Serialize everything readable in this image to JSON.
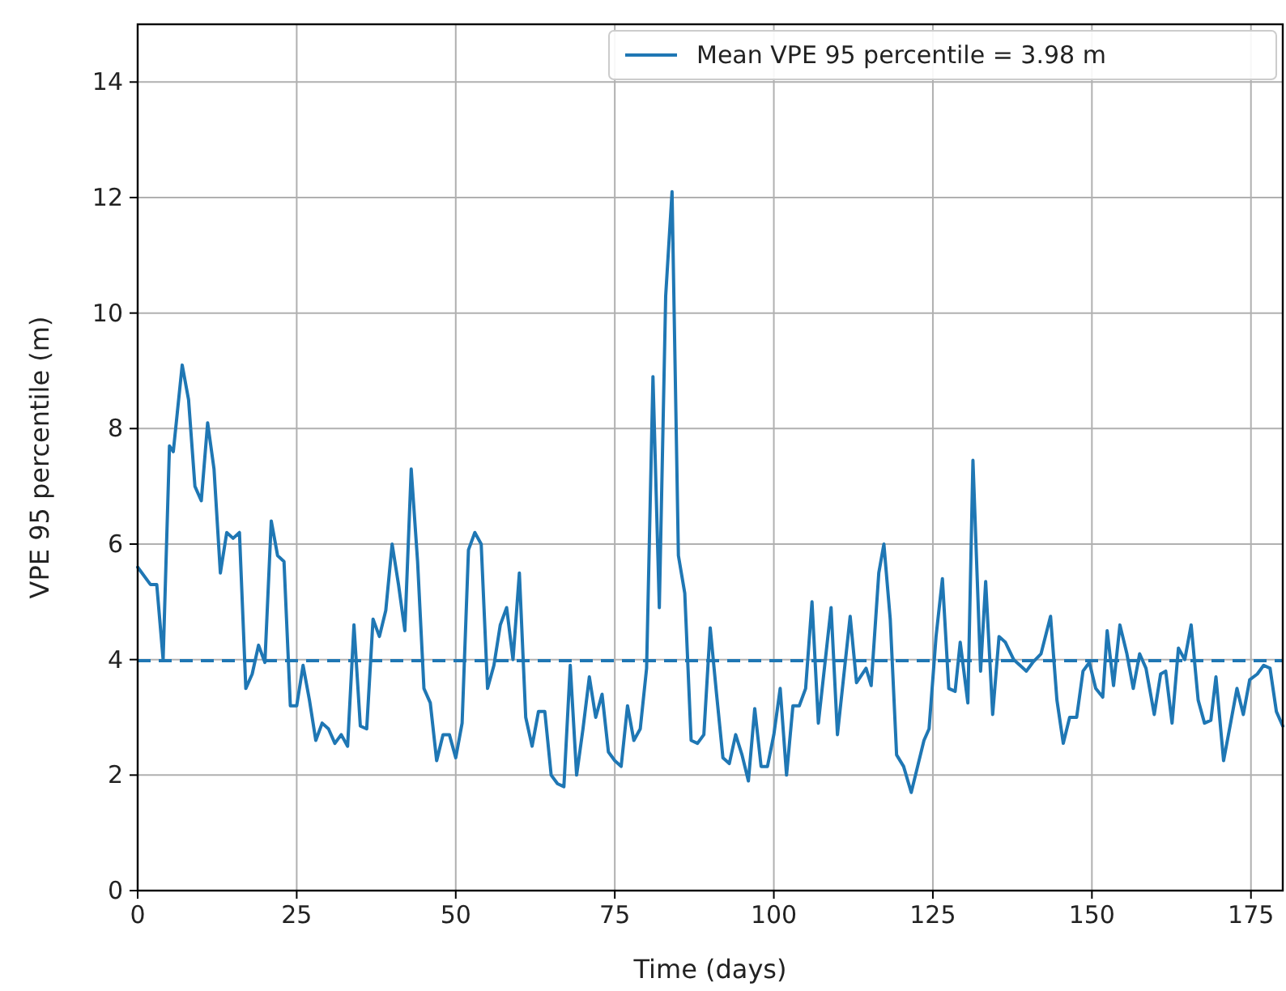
{
  "chart_data": {
    "type": "line",
    "xlabel": "Time (days)",
    "ylabel": "VPE 95 percentile (m)",
    "xlim": [
      0,
      180
    ],
    "ylim": [
      0,
      15
    ],
    "xticks": [
      0,
      25,
      50,
      75,
      100,
      125,
      150,
      175
    ],
    "yticks": [
      0,
      2,
      4,
      6,
      8,
      10,
      12,
      14
    ],
    "grid": true,
    "legend": "top right",
    "line_style": "solid",
    "marker": "none",
    "series": [
      {
        "name": "Mean VPE 95 percentile = 3.98 m",
        "color": "#1f77b4",
        "x": [
          0,
          2,
          3,
          4,
          5,
          5.6,
          7,
          8,
          9,
          10,
          11,
          12,
          13,
          14,
          15,
          16,
          17,
          18,
          19,
          20,
          21,
          22,
          23,
          24,
          25,
          26,
          27,
          28,
          29,
          30,
          31,
          32,
          33,
          34,
          35,
          36,
          37,
          38,
          39,
          40,
          41,
          42,
          43,
          44,
          45,
          46,
          47,
          48,
          49,
          50,
          51,
          52,
          53,
          54,
          55,
          56,
          57,
          58,
          59,
          60,
          61,
          62,
          63,
          64,
          65,
          66,
          67,
          68,
          69,
          70,
          71,
          72,
          73,
          74,
          75,
          76,
          77,
          78,
          79,
          80,
          81,
          82,
          83,
          84,
          85,
          86,
          87,
          88,
          89,
          90,
          91,
          92,
          93,
          94,
          95,
          96,
          97,
          98,
          99,
          100,
          101,
          102,
          103,
          104,
          105,
          106,
          107,
          109,
          110,
          112,
          113,
          114.5,
          115.3,
          116.5,
          117.3,
          118.3,
          119.3,
          120.4,
          121.6,
          122.6,
          123.6,
          124.4,
          125.5,
          126.5,
          127.5,
          128.5,
          129.3,
          130.5,
          131.3,
          132.5,
          133.3,
          134.4,
          135.4,
          136.4,
          137.7,
          138.7,
          139.7,
          140.7,
          142,
          143.5,
          144.5,
          145.5,
          146.5,
          147.6,
          148.6,
          149.6,
          150.6,
          151.7,
          152.4,
          153.4,
          154.4,
          155.5,
          156.5,
          157.5,
          158.5,
          159.8,
          160.8,
          161.6,
          162.6,
          163.6,
          164.6,
          165.6,
          166.7,
          167.7,
          168.7,
          169.5,
          170.7,
          171.8,
          172.8,
          173.8,
          174.8,
          176,
          177,
          178,
          179,
          180
        ],
        "values": [
          5.6,
          5.3,
          5.3,
          4.0,
          7.7,
          7.6,
          9.1,
          8.5,
          7.0,
          6.75,
          8.1,
          7.3,
          5.5,
          6.2,
          6.1,
          6.2,
          3.5,
          3.75,
          4.25,
          3.95,
          6.4,
          5.8,
          5.7,
          3.2,
          3.2,
          3.9,
          3.3,
          2.6,
          2.9,
          2.8,
          2.55,
          2.7,
          2.5,
          4.6,
          2.85,
          2.8,
          4.7,
          4.4,
          4.85,
          6.0,
          5.3,
          4.5,
          7.3,
          5.7,
          3.5,
          3.25,
          2.25,
          2.7,
          2.7,
          2.3,
          2.9,
          5.9,
          6.2,
          6.0,
          3.5,
          3.9,
          4.6,
          4.9,
          4.0,
          5.5,
          3.0,
          2.5,
          3.1,
          3.1,
          2.0,
          1.85,
          1.8,
          3.9,
          2.0,
          2.8,
          3.7,
          3.0,
          3.4,
          2.4,
          2.25,
          2.15,
          3.2,
          2.6,
          2.8,
          3.85,
          8.9,
          4.9,
          10.3,
          12.1,
          5.8,
          5.15,
          2.6,
          2.55,
          2.7,
          4.55,
          3.4,
          2.3,
          2.2,
          2.7,
          2.35,
          1.9,
          3.15,
          2.15,
          2.15,
          2.7,
          3.5,
          2.0,
          3.2,
          3.2,
          3.5,
          5.0,
          2.9,
          4.9,
          2.7,
          4.75,
          3.6,
          3.85,
          3.55,
          5.5,
          6.0,
          4.7,
          2.35,
          2.15,
          1.7,
          2.15,
          2.6,
          2.8,
          4.4,
          5.4,
          3.5,
          3.45,
          4.3,
          3.25,
          7.45,
          3.8,
          5.35,
          3.05,
          4.4,
          4.3,
          4.0,
          3.9,
          3.8,
          3.95,
          4.1,
          4.75,
          3.3,
          2.55,
          3.0,
          3.0,
          3.8,
          3.95,
          3.5,
          3.35,
          4.5,
          3.55,
          4.6,
          4.1,
          3.5,
          4.1,
          3.85,
          3.05,
          3.75,
          3.8,
          2.9,
          4.2,
          4.0,
          4.6,
          3.3,
          2.9,
          2.95,
          3.7,
          2.25,
          2.9,
          3.5,
          3.05,
          3.65,
          3.75,
          3.9,
          3.85,
          3.1,
          2.85
        ]
      }
    ],
    "ref_lines": [
      {
        "axis": "y",
        "value": 3.98,
        "color": "#1f77b4",
        "line_style": "dashed"
      }
    ]
  }
}
